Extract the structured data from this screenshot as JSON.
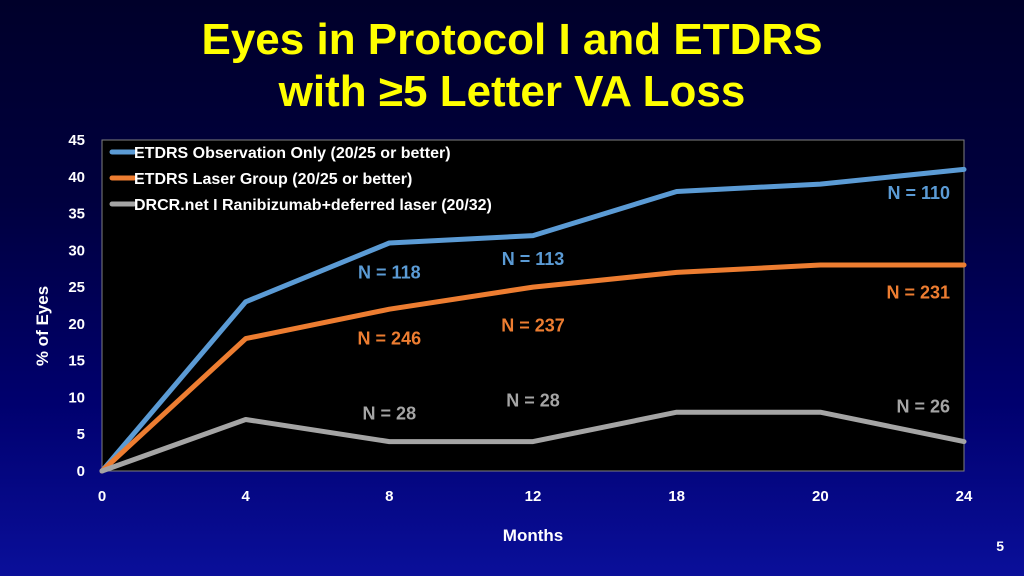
{
  "slide": {
    "title_line1": "Eyes in Protocol I and ETDRS",
    "title_line2": "with ≥5 Letter VA Loss",
    "number": "5"
  },
  "chart_data": {
    "type": "line",
    "title": "Eyes in Protocol I and ETDRS with ≥5 Letter VA Loss",
    "xlabel": "Months",
    "ylabel": "% of Eyes",
    "x": [
      "0",
      "4",
      "8",
      "12",
      "18",
      "20",
      "24"
    ],
    "ylim": [
      0,
      45
    ],
    "yticks": [
      0,
      5,
      10,
      15,
      20,
      25,
      30,
      35,
      40,
      45
    ],
    "grid": false,
    "legend_position": "top-left",
    "series": [
      {
        "name": "ETDRS Observation Only (20/25 or better)",
        "color": "#5b9bd5",
        "values": [
          0,
          23,
          31,
          32,
          38,
          39,
          41
        ]
      },
      {
        "name": "ETDRS Laser Group (20/25 or better)",
        "color": "#ed7d31",
        "values": [
          0,
          18,
          22,
          25,
          27,
          28,
          28
        ]
      },
      {
        "name": "DRCR.net I Ranibizumab+deferred laser (20/32)",
        "color": "#a5a5a5",
        "values": [
          0,
          7,
          4,
          4,
          8,
          8,
          4
        ]
      }
    ],
    "annotations": [
      {
        "text": "N = 118",
        "series": 0,
        "x": 8,
        "y": 27
      },
      {
        "text": "N = 113",
        "series": 0,
        "x": 12,
        "y": 28.8
      },
      {
        "text": "N = 110",
        "series": 0,
        "x": 24,
        "y": 37.8
      },
      {
        "text": "N = 246",
        "series": 1,
        "x": 8,
        "y": 18
      },
      {
        "text": "N = 237",
        "series": 1,
        "x": 12,
        "y": 19.8
      },
      {
        "text": "N = 231",
        "series": 1,
        "x": 24,
        "y": 24.3
      },
      {
        "text": "N = 28",
        "series": 2,
        "x": 8,
        "y": 7.8
      },
      {
        "text": "N = 28",
        "series": 2,
        "x": 12,
        "y": 9.6
      },
      {
        "text": "N = 26",
        "series": 2,
        "x": 24,
        "y": 8.8
      }
    ]
  }
}
